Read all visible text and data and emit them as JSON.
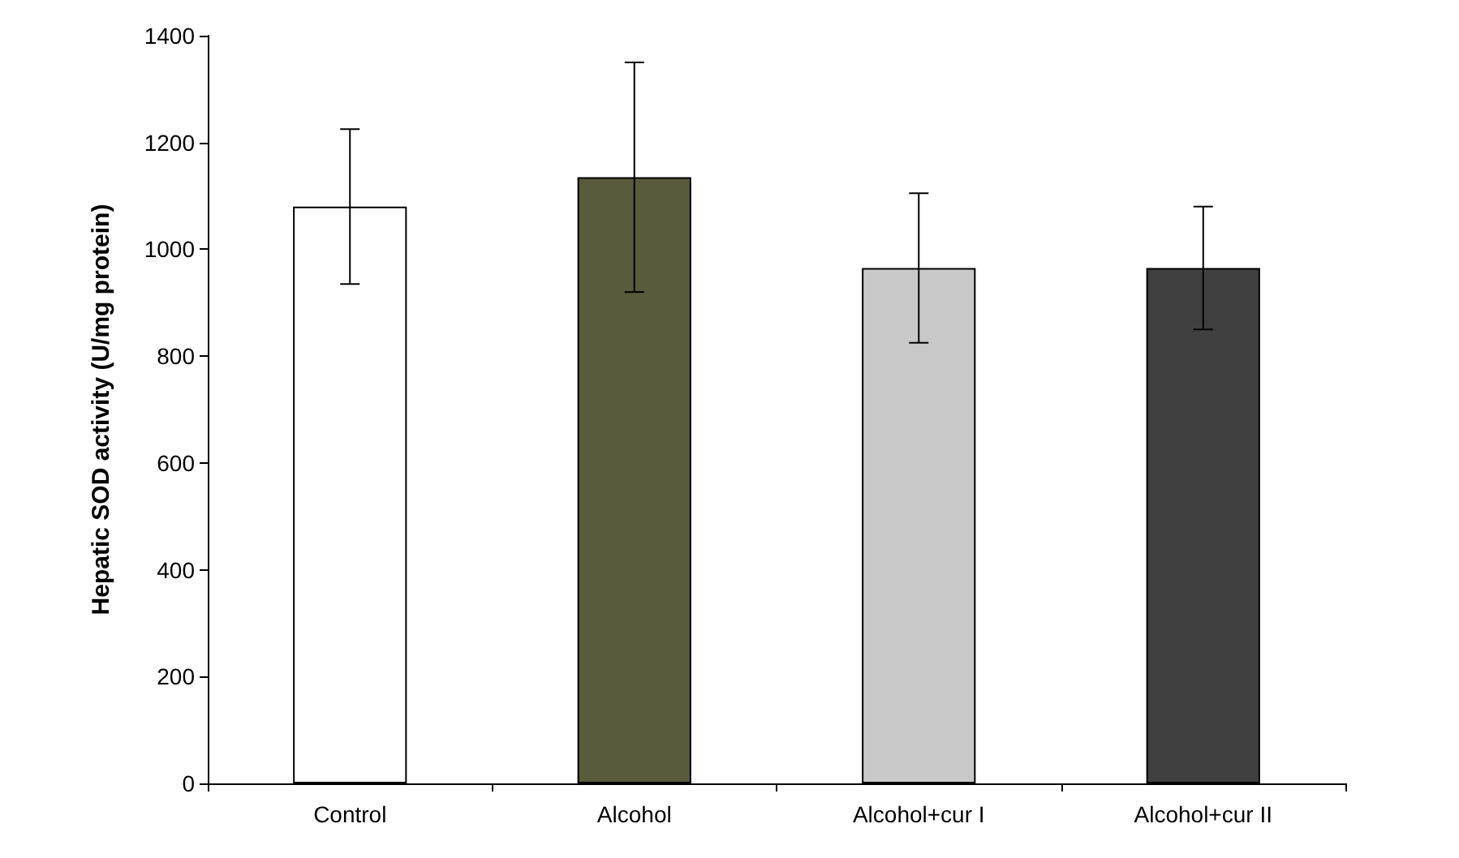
{
  "chart_data": {
    "type": "bar",
    "ylabel": "Hepatic SOD activity (U/mg protein)",
    "categories": [
      "Control",
      "Alcohol",
      "Alcohol+cur I",
      "Alcohol+cur II"
    ],
    "values": [
      1080,
      1135,
      965,
      965
    ],
    "errors": [
      145,
      215,
      140,
      115
    ],
    "colors": [
      "#ffffff",
      "#5a5a3c",
      "#c8c8c8",
      "#404040"
    ],
    "ylim": [
      0,
      1400
    ],
    "yticks": [
      0,
      200,
      400,
      600,
      800,
      1000,
      1200,
      1400
    ],
    "grid": false
  }
}
